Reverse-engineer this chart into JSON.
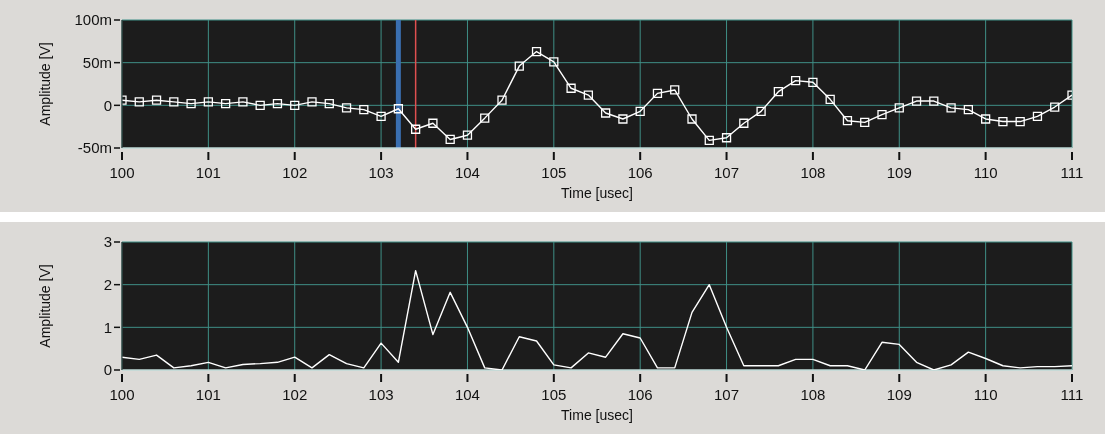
{
  "chart_data": [
    {
      "type": "line",
      "xlabel": "Time [usec]",
      "ylabel": "Amplitude [V]",
      "grid": true,
      "marker": "square",
      "line_style": "solid",
      "xlim": [
        100,
        111
      ],
      "xticks": [
        100,
        101,
        102,
        103,
        104,
        105,
        106,
        107,
        108,
        109,
        110,
        111
      ],
      "ylim": [
        -50,
        100
      ],
      "yticks": [
        {
          "value": -50,
          "label": "-50m"
        },
        {
          "value": 0,
          "label": "0"
        },
        {
          "value": 50,
          "label": "50m"
        },
        {
          "value": 100,
          "label": "100m"
        }
      ],
      "x": [
        100,
        100.2,
        100.4,
        100.6,
        100.8,
        101,
        101.2,
        101.4,
        101.6,
        101.8,
        102,
        102.2,
        102.4,
        102.6,
        102.8,
        103,
        103.2,
        103.4,
        103.6,
        103.8,
        104,
        104.2,
        104.4,
        104.6,
        104.8,
        105,
        105.2,
        105.4,
        105.6,
        105.8,
        106,
        106.2,
        106.4,
        106.6,
        106.8,
        107,
        107.2,
        107.4,
        107.6,
        107.8,
        108,
        108.2,
        108.4,
        108.6,
        108.8,
        109,
        109.2,
        109.4,
        109.6,
        109.8,
        110,
        110.2,
        110.4,
        110.6,
        110.8,
        111
      ],
      "series": [
        {
          "color": "#ffffff",
          "values": [
            6,
            4,
            6,
            4,
            2,
            4,
            2,
            4,
            0,
            2,
            0,
            4,
            2,
            -3,
            -5,
            -13,
            -4,
            -28,
            -21,
            -40,
            -35,
            -15,
            6,
            46,
            63,
            51,
            20,
            12,
            -9,
            -16,
            -7,
            14,
            18,
            -16,
            -41,
            -38,
            -21,
            -7,
            16,
            29,
            27,
            7,
            -18,
            -20,
            -11,
            -3,
            5,
            5,
            -3,
            -5,
            -16,
            -19,
            -19,
            -13,
            -2,
            12
          ]
        }
      ],
      "ref_lines": [
        {
          "axis": "x",
          "value": 103.2,
          "color": "#3a6fb0"
        },
        {
          "axis": "x",
          "value": 103.4,
          "color": "#e05050"
        }
      ]
    },
    {
      "type": "line",
      "xlabel": "Time [usec]",
      "ylabel": "Amplitude [V]",
      "grid": true,
      "line_style": "solid",
      "xlim": [
        100,
        111
      ],
      "xticks": [
        100,
        101,
        102,
        103,
        104,
        105,
        106,
        107,
        108,
        109,
        110,
        111
      ],
      "ylim": [
        0,
        3
      ],
      "yticks": [
        0,
        1,
        2,
        3
      ],
      "x": [
        100,
        100.2,
        100.4,
        100.6,
        100.8,
        101,
        101.2,
        101.4,
        101.6,
        101.8,
        102,
        102.2,
        102.4,
        102.6,
        102.8,
        103,
        103.2,
        103.4,
        103.6,
        103.8,
        104,
        104.2,
        104.4,
        104.6,
        104.8,
        105,
        105.2,
        105.4,
        105.6,
        105.8,
        106,
        106.2,
        106.4,
        106.6,
        106.8,
        107,
        107.2,
        107.4,
        107.6,
        107.8,
        108,
        108.2,
        108.4,
        108.6,
        108.8,
        109,
        109.2,
        109.4,
        109.6,
        109.8,
        110,
        110.2,
        110.4,
        110.6,
        110.8,
        111
      ],
      "series": [
        {
          "color": "#ffffff",
          "values": [
            0.3,
            0.25,
            0.35,
            0.05,
            0.1,
            0.18,
            0.05,
            0.13,
            0.15,
            0.18,
            0.3,
            0.05,
            0.36,
            0.15,
            0.05,
            0.63,
            0.18,
            2.33,
            0.83,
            1.82,
            1.0,
            0.05,
            0,
            0.78,
            0.68,
            0.12,
            0.05,
            0.4,
            0.3,
            0.85,
            0.75,
            0.05,
            0.05,
            1.35,
            2.0,
            1.0,
            0.1,
            0.1,
            0.1,
            0.25,
            0.25,
            0.1,
            0.1,
            0,
            0.65,
            0.6,
            0.18,
            0,
            0.12,
            0.42,
            0.27,
            0.1,
            0.05,
            0.08,
            0.08,
            0.1
          ]
        }
      ]
    }
  ]
}
